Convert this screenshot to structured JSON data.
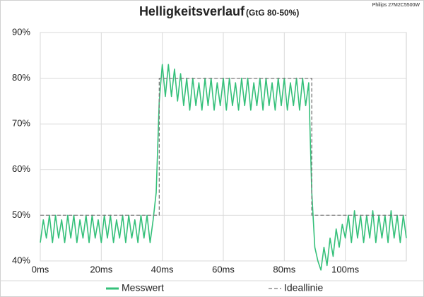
{
  "chart_data": {
    "type": "line",
    "title": "Helligkeitsverlauf",
    "subtitle": "(GtG 80-50%)",
    "annotation": "Philips 27M2C5500W",
    "xlim": [
      0,
      120
    ],
    "ylim": [
      40,
      90
    ],
    "xticks": [
      {
        "value": 0,
        "label": "0ms"
      },
      {
        "value": 20,
        "label": "20ms"
      },
      {
        "value": 40,
        "label": "40ms"
      },
      {
        "value": 60,
        "label": "60ms"
      },
      {
        "value": 80,
        "label": "80ms"
      },
      {
        "value": 100,
        "label": "100ms"
      }
    ],
    "yticks": [
      {
        "value": 40,
        "label": "40%"
      },
      {
        "value": 50,
        "label": "50%"
      },
      {
        "value": 60,
        "label": "60%"
      },
      {
        "value": 70,
        "label": "70%"
      },
      {
        "value": 80,
        "label": "80%"
      },
      {
        "value": 90,
        "label": "90%"
      }
    ],
    "grid": true,
    "legend": "bottom",
    "series": [
      {
        "name": "Messwert",
        "color": "#35c07a",
        "dashed": false,
        "x": [
          0,
          1,
          2,
          3,
          4,
          5,
          6,
          7,
          8,
          9,
          10,
          11,
          12,
          13,
          14,
          15,
          16,
          17,
          18,
          19,
          20,
          21,
          22,
          23,
          24,
          25,
          26,
          27,
          28,
          29,
          30,
          31,
          32,
          33,
          34,
          35,
          36,
          37,
          38,
          39,
          40,
          41,
          42,
          43,
          44,
          45,
          46,
          47,
          48,
          49,
          50,
          51,
          52,
          53,
          54,
          55,
          56,
          57,
          58,
          59,
          60,
          61,
          62,
          63,
          64,
          65,
          66,
          67,
          68,
          69,
          70,
          71,
          72,
          73,
          74,
          75,
          76,
          77,
          78,
          79,
          80,
          81,
          82,
          83,
          84,
          85,
          86,
          87,
          88,
          89,
          90,
          91,
          92,
          93,
          94,
          95,
          96,
          97,
          98,
          99,
          100,
          101,
          102,
          103,
          104,
          105,
          106,
          107,
          108,
          109,
          110,
          111,
          112,
          113,
          114,
          115,
          116,
          117,
          118,
          119,
          120
        ],
        "values": [
          44,
          49,
          45,
          50,
          44,
          50,
          45,
          49,
          44,
          50,
          45,
          50,
          44,
          49,
          45,
          50,
          44,
          50,
          45,
          49,
          44,
          50,
          45,
          50,
          44,
          49,
          45,
          50,
          44,
          50,
          45,
          49,
          44,
          50,
          45,
          50,
          44,
          49,
          55,
          75,
          83,
          76,
          83,
          76,
          82,
          75,
          81,
          74,
          80,
          73,
          80,
          74,
          79,
          73,
          80,
          74,
          80,
          73,
          79,
          74,
          80,
          73,
          80,
          74,
          79,
          73,
          80,
          74,
          80,
          73,
          79,
          74,
          80,
          73,
          80,
          74,
          79,
          73,
          80,
          74,
          80,
          73,
          79,
          74,
          80,
          73,
          80,
          74,
          79,
          55,
          43,
          40,
          38,
          43,
          39,
          45,
          41,
          47,
          43,
          48,
          45,
          50,
          44,
          51,
          45,
          50,
          44,
          50,
          45,
          51,
          44,
          50,
          45,
          50,
          44,
          51,
          45,
          50,
          44,
          50,
          45
        ]
      },
      {
        "name": "Ideallinie",
        "color": "#777777",
        "dashed": true,
        "x": [
          0,
          39,
          39,
          89,
          89,
          120
        ],
        "values": [
          50,
          50,
          80,
          80,
          50,
          50
        ]
      }
    ]
  }
}
